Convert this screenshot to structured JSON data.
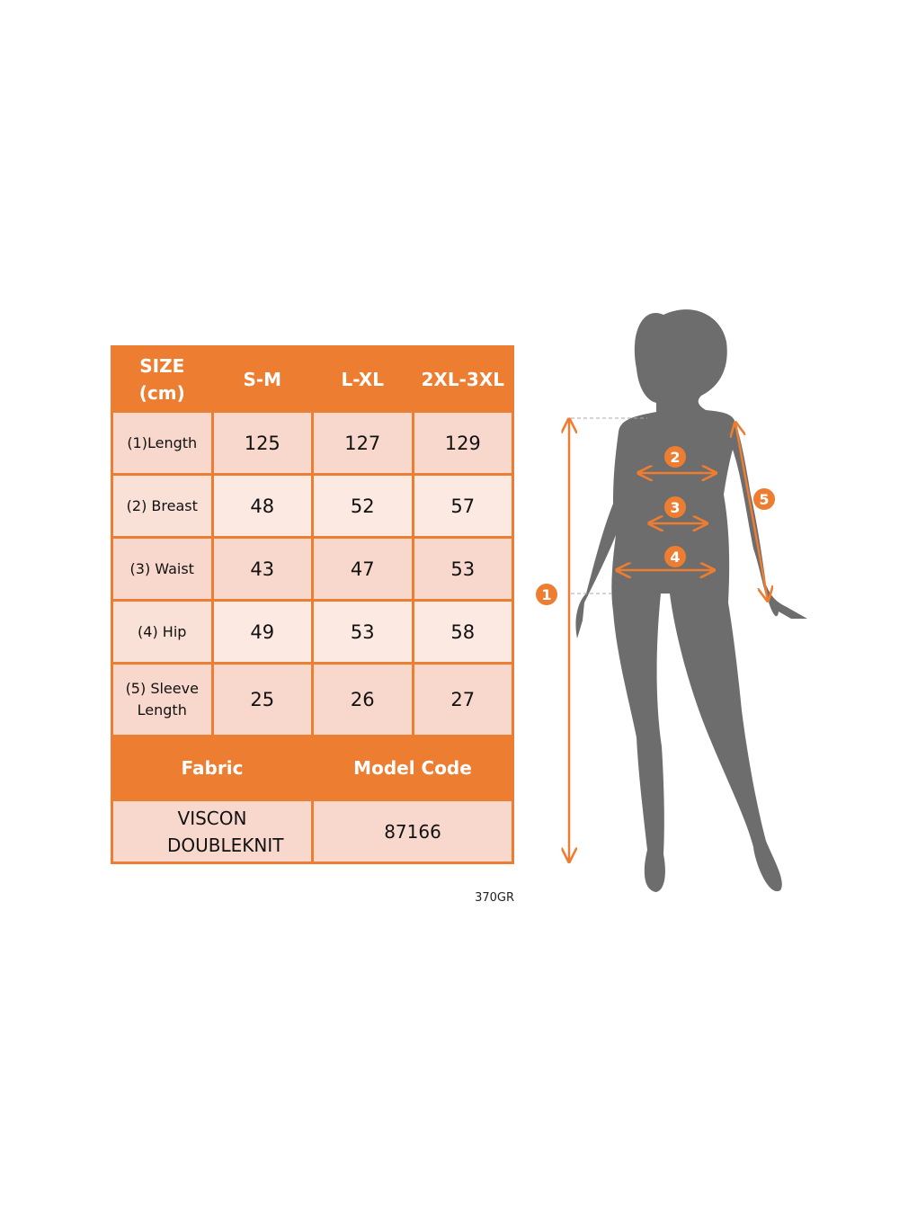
{
  "table": {
    "header": {
      "size_label": "SIZE\n(cm)",
      "columns": [
        "S-M",
        "L-XL",
        "2XL-3XL"
      ]
    },
    "rows": [
      {
        "label": "(1)Length",
        "values": [
          "125",
          "127",
          "129"
        ]
      },
      {
        "label": "(2) Breast",
        "values": [
          "48",
          "52",
          "57"
        ]
      },
      {
        "label": "(3) Waist",
        "values": [
          "43",
          "47",
          "53"
        ]
      },
      {
        "label": "(4) Hip",
        "values": [
          "49",
          "53",
          "58"
        ]
      },
      {
        "label": "(5) Sleeve Length",
        "values": [
          "25",
          "26",
          "27"
        ]
      }
    ],
    "fabric_label": "Fabric",
    "model_code_label": "Model Code",
    "fabric_value": "VISCON DOUBLEKNIT",
    "model_code_value": "87166"
  },
  "weight_note": "370GR",
  "figure": {
    "markers": [
      "1",
      "2",
      "3",
      "4",
      "5"
    ]
  },
  "colors": {
    "accent": "#ed7d31",
    "silhouette": "#6d6d6d",
    "row_dark": "#f8d8cc",
    "row_light": "#fbe9e2"
  }
}
